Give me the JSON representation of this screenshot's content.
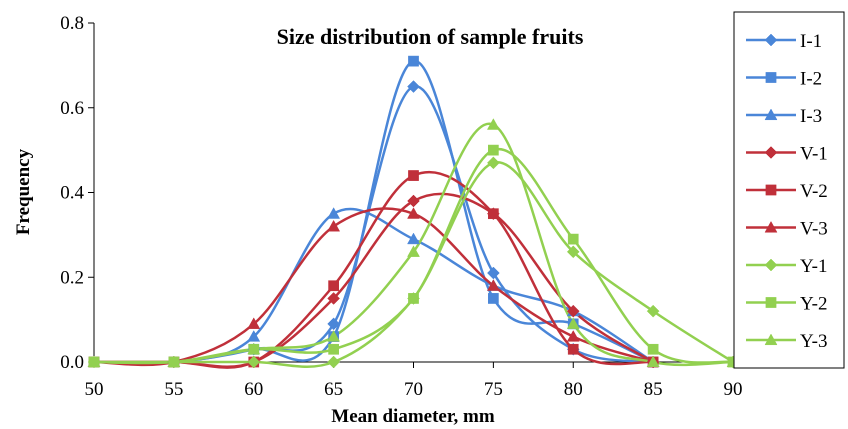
{
  "chart_data": {
    "type": "line",
    "title": "Size distribution of sample fruits",
    "xlabel": "Mean diameter, mm",
    "ylabel": "Frequency",
    "xlim": [
      50,
      90
    ],
    "ylim": [
      0,
      0.8
    ],
    "xticks": [
      50,
      55,
      60,
      65,
      70,
      75,
      80,
      85,
      90
    ],
    "yticks": [
      0.0,
      0.2,
      0.4,
      0.6,
      0.8
    ],
    "ytick_labels": [
      "0.0",
      "0.2",
      "0.4",
      "0.6",
      "0.8"
    ],
    "xtick_labels": [
      "50",
      "55",
      "60",
      "65",
      "70",
      "75",
      "80",
      "85",
      "90"
    ],
    "grid": false,
    "smooth": true,
    "legend_position": "right",
    "series": [
      {
        "name": "I-1",
        "marker": "diamond",
        "color": "#4a86d8",
        "points": [
          [
            50,
            0
          ],
          [
            55,
            0
          ],
          [
            60,
            0.03
          ],
          [
            65,
            0.09
          ],
          [
            70,
            0.65
          ],
          [
            75,
            0.21
          ],
          [
            80,
            0.03
          ],
          [
            85,
            0
          ]
        ]
      },
      {
        "name": "I-2",
        "marker": "square",
        "color": "#4a86d8",
        "points": [
          [
            50,
            0
          ],
          [
            55,
            0
          ],
          [
            60,
            0.03
          ],
          [
            65,
            0.06
          ],
          [
            70,
            0.71
          ],
          [
            75,
            0.15
          ],
          [
            80,
            0.09
          ],
          [
            85,
            0
          ]
        ]
      },
      {
        "name": "I-3",
        "marker": "triangle",
        "color": "#4a86d8",
        "points": [
          [
            50,
            0
          ],
          [
            55,
            0
          ],
          [
            60,
            0.06
          ],
          [
            65,
            0.35
          ],
          [
            70,
            0.29
          ],
          [
            75,
            0.18
          ],
          [
            80,
            0.12
          ],
          [
            85,
            0
          ]
        ]
      },
      {
        "name": "V-1",
        "marker": "diamond",
        "color": "#c0303a",
        "points": [
          [
            50,
            0
          ],
          [
            55,
            0
          ],
          [
            60,
            0
          ],
          [
            65,
            0.15
          ],
          [
            70,
            0.38
          ],
          [
            75,
            0.35
          ],
          [
            80,
            0.12
          ],
          [
            85,
            0
          ]
        ]
      },
      {
        "name": "V-2",
        "marker": "square",
        "color": "#c0303a",
        "points": [
          [
            50,
            0
          ],
          [
            55,
            0
          ],
          [
            60,
            0
          ],
          [
            65,
            0.18
          ],
          [
            70,
            0.44
          ],
          [
            75,
            0.35
          ],
          [
            80,
            0.03
          ],
          [
            85,
            0
          ]
        ]
      },
      {
        "name": "V-3",
        "marker": "triangle",
        "color": "#c0303a",
        "points": [
          [
            50,
            0
          ],
          [
            55,
            0
          ],
          [
            60,
            0.09
          ],
          [
            65,
            0.32
          ],
          [
            70,
            0.35
          ],
          [
            75,
            0.18
          ],
          [
            80,
            0.06
          ],
          [
            85,
            0
          ]
        ]
      },
      {
        "name": "Y-1",
        "marker": "diamond",
        "color": "#92d050",
        "points": [
          [
            50,
            0
          ],
          [
            55,
            0
          ],
          [
            60,
            0
          ],
          [
            65,
            0
          ],
          [
            70,
            0.15
          ],
          [
            75,
            0.47
          ],
          [
            80,
            0.26
          ],
          [
            85,
            0.12
          ],
          [
            90,
            0
          ]
        ]
      },
      {
        "name": "Y-2",
        "marker": "square",
        "color": "#92d050",
        "points": [
          [
            50,
            0
          ],
          [
            55,
            0
          ],
          [
            60,
            0.03
          ],
          [
            65,
            0.03
          ],
          [
            70,
            0.15
          ],
          [
            75,
            0.5
          ],
          [
            80,
            0.29
          ],
          [
            85,
            0.03
          ],
          [
            90,
            0
          ]
        ]
      },
      {
        "name": "Y-3",
        "marker": "triangle",
        "color": "#92d050",
        "points": [
          [
            50,
            0
          ],
          [
            55,
            0
          ],
          [
            60,
            0.03
          ],
          [
            65,
            0.06
          ],
          [
            70,
            0.26
          ],
          [
            75,
            0.56
          ],
          [
            80,
            0.09
          ],
          [
            85,
            0
          ],
          [
            90,
            0
          ]
        ]
      }
    ]
  }
}
